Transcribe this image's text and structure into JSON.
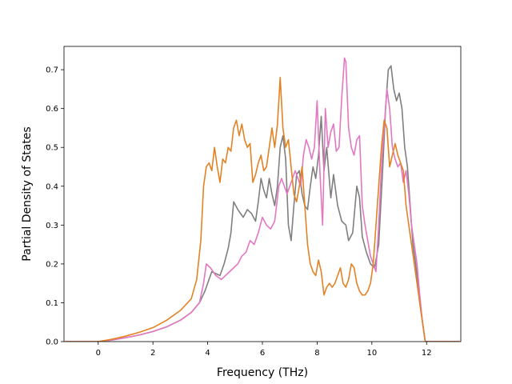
{
  "chart_data": {
    "type": "line",
    "title": "",
    "xlabel": "Frequency (THz)",
    "ylabel": "Partial Density of States",
    "xlim": [
      -1.25,
      13.25
    ],
    "ylim": [
      0.0,
      0.76
    ],
    "xticks": [
      0,
      2,
      4,
      6,
      8,
      10,
      12
    ],
    "yticks": [
      0.0,
      0.1,
      0.2,
      0.3,
      0.4,
      0.5,
      0.6,
      0.7
    ],
    "xtick_labels": [
      "0",
      "2",
      "4",
      "6",
      "8",
      "10",
      "12"
    ],
    "ytick_labels": [
      "0.0",
      "0.1",
      "0.2",
      "0.3",
      "0.4",
      "0.5",
      "0.6",
      "0.7"
    ],
    "grid": false,
    "legend": "none",
    "series": [
      {
        "color": "#7f7f7f",
        "points": [
          [
            -1.2,
            0
          ],
          [
            0,
            0
          ],
          [
            0.5,
            0.004
          ],
          [
            1,
            0.01
          ],
          [
            1.5,
            0.017
          ],
          [
            2,
            0.026
          ],
          [
            2.5,
            0.038
          ],
          [
            3,
            0.055
          ],
          [
            3.4,
            0.075
          ],
          [
            3.7,
            0.1
          ],
          [
            3.9,
            0.13
          ],
          [
            4.0,
            0.15
          ],
          [
            4.15,
            0.18
          ],
          [
            4.3,
            0.175
          ],
          [
            4.45,
            0.17
          ],
          [
            4.6,
            0.2
          ],
          [
            4.75,
            0.24
          ],
          [
            4.85,
            0.28
          ],
          [
            4.95,
            0.36
          ],
          [
            5.1,
            0.34
          ],
          [
            5.3,
            0.32
          ],
          [
            5.45,
            0.34
          ],
          [
            5.6,
            0.33
          ],
          [
            5.75,
            0.31
          ],
          [
            5.85,
            0.36
          ],
          [
            5.95,
            0.42
          ],
          [
            6.05,
            0.39
          ],
          [
            6.15,
            0.37
          ],
          [
            6.25,
            0.42
          ],
          [
            6.35,
            0.38
          ],
          [
            6.45,
            0.35
          ],
          [
            6.55,
            0.4
          ],
          [
            6.65,
            0.5
          ],
          [
            6.75,
            0.53
          ],
          [
            6.85,
            0.47
          ],
          [
            6.95,
            0.3
          ],
          [
            7.05,
            0.26
          ],
          [
            7.15,
            0.35
          ],
          [
            7.25,
            0.43
          ],
          [
            7.35,
            0.44
          ],
          [
            7.45,
            0.38
          ],
          [
            7.55,
            0.35
          ],
          [
            7.65,
            0.34
          ],
          [
            7.75,
            0.4
          ],
          [
            7.85,
            0.45
          ],
          [
            7.95,
            0.42
          ],
          [
            8.05,
            0.48
          ],
          [
            8.15,
            0.58
          ],
          [
            8.25,
            0.44
          ],
          [
            8.35,
            0.5
          ],
          [
            8.5,
            0.37
          ],
          [
            8.6,
            0.43
          ],
          [
            8.75,
            0.35
          ],
          [
            8.9,
            0.31
          ],
          [
            9.05,
            0.3
          ],
          [
            9.15,
            0.26
          ],
          [
            9.3,
            0.28
          ],
          [
            9.45,
            0.4
          ],
          [
            9.55,
            0.37
          ],
          [
            9.65,
            0.27
          ],
          [
            9.8,
            0.23
          ],
          [
            9.95,
            0.2
          ],
          [
            10.1,
            0.19
          ],
          [
            10.25,
            0.25
          ],
          [
            10.4,
            0.45
          ],
          [
            10.5,
            0.6
          ],
          [
            10.6,
            0.7
          ],
          [
            10.7,
            0.71
          ],
          [
            10.8,
            0.65
          ],
          [
            10.9,
            0.62
          ],
          [
            11.0,
            0.64
          ],
          [
            11.1,
            0.6
          ],
          [
            11.2,
            0.5
          ],
          [
            11.3,
            0.45
          ],
          [
            11.4,
            0.35
          ],
          [
            11.5,
            0.25
          ],
          [
            11.6,
            0.2
          ],
          [
            11.75,
            0.1
          ],
          [
            11.85,
            0.05
          ],
          [
            11.95,
            0
          ],
          [
            13.2,
            0
          ]
        ]
      },
      {
        "color": "#e377c2",
        "points": [
          [
            -1.2,
            0
          ],
          [
            0,
            0
          ],
          [
            0.5,
            0.004
          ],
          [
            1,
            0.01
          ],
          [
            1.5,
            0.017
          ],
          [
            2,
            0.026
          ],
          [
            2.5,
            0.038
          ],
          [
            3,
            0.055
          ],
          [
            3.4,
            0.075
          ],
          [
            3.7,
            0.1
          ],
          [
            3.85,
            0.15
          ],
          [
            3.95,
            0.2
          ],
          [
            4.1,
            0.19
          ],
          [
            4.3,
            0.17
          ],
          [
            4.5,
            0.16
          ],
          [
            4.65,
            0.17
          ],
          [
            4.8,
            0.18
          ],
          [
            4.95,
            0.19
          ],
          [
            5.1,
            0.2
          ],
          [
            5.25,
            0.22
          ],
          [
            5.4,
            0.23
          ],
          [
            5.55,
            0.26
          ],
          [
            5.7,
            0.25
          ],
          [
            5.85,
            0.28
          ],
          [
            6.0,
            0.32
          ],
          [
            6.15,
            0.3
          ],
          [
            6.3,
            0.29
          ],
          [
            6.45,
            0.31
          ],
          [
            6.6,
            0.4
          ],
          [
            6.7,
            0.42
          ],
          [
            6.8,
            0.4
          ],
          [
            6.9,
            0.38
          ],
          [
            7.0,
            0.4
          ],
          [
            7.1,
            0.42
          ],
          [
            7.2,
            0.44
          ],
          [
            7.3,
            0.42
          ],
          [
            7.4,
            0.4
          ],
          [
            7.5,
            0.48
          ],
          [
            7.6,
            0.52
          ],
          [
            7.7,
            0.5
          ],
          [
            7.8,
            0.47
          ],
          [
            7.9,
            0.5
          ],
          [
            8.0,
            0.62
          ],
          [
            8.1,
            0.44
          ],
          [
            8.2,
            0.3
          ],
          [
            8.3,
            0.6
          ],
          [
            8.4,
            0.5
          ],
          [
            8.5,
            0.54
          ],
          [
            8.6,
            0.56
          ],
          [
            8.7,
            0.49
          ],
          [
            8.8,
            0.5
          ],
          [
            8.9,
            0.63
          ],
          [
            9.0,
            0.73
          ],
          [
            9.05,
            0.72
          ],
          [
            9.15,
            0.55
          ],
          [
            9.25,
            0.5
          ],
          [
            9.35,
            0.48
          ],
          [
            9.45,
            0.52
          ],
          [
            9.55,
            0.53
          ],
          [
            9.65,
            0.35
          ],
          [
            9.75,
            0.3
          ],
          [
            9.85,
            0.26
          ],
          [
            9.95,
            0.22
          ],
          [
            10.05,
            0.2
          ],
          [
            10.15,
            0.18
          ],
          [
            10.25,
            0.3
          ],
          [
            10.35,
            0.45
          ],
          [
            10.45,
            0.55
          ],
          [
            10.55,
            0.65
          ],
          [
            10.65,
            0.6
          ],
          [
            10.75,
            0.5
          ],
          [
            10.85,
            0.47
          ],
          [
            10.95,
            0.45
          ],
          [
            11.05,
            0.46
          ],
          [
            11.15,
            0.41
          ],
          [
            11.25,
            0.44
          ],
          [
            11.35,
            0.38
          ],
          [
            11.45,
            0.3
          ],
          [
            11.55,
            0.25
          ],
          [
            11.65,
            0.2
          ],
          [
            11.75,
            0.12
          ],
          [
            11.85,
            0.05
          ],
          [
            11.95,
            0
          ],
          [
            13.2,
            0
          ]
        ]
      },
      {
        "color": "#e38224",
        "points": [
          [
            -1.2,
            0
          ],
          [
            0,
            0
          ],
          [
            0.5,
            0.006
          ],
          [
            1,
            0.014
          ],
          [
            1.5,
            0.024
          ],
          [
            2,
            0.036
          ],
          [
            2.5,
            0.055
          ],
          [
            3,
            0.08
          ],
          [
            3.4,
            0.11
          ],
          [
            3.6,
            0.16
          ],
          [
            3.75,
            0.26
          ],
          [
            3.85,
            0.4
          ],
          [
            3.95,
            0.45
          ],
          [
            4.05,
            0.46
          ],
          [
            4.15,
            0.44
          ],
          [
            4.25,
            0.5
          ],
          [
            4.35,
            0.45
          ],
          [
            4.45,
            0.41
          ],
          [
            4.55,
            0.47
          ],
          [
            4.65,
            0.46
          ],
          [
            4.75,
            0.5
          ],
          [
            4.85,
            0.49
          ],
          [
            4.95,
            0.55
          ],
          [
            5.05,
            0.57
          ],
          [
            5.15,
            0.53
          ],
          [
            5.25,
            0.56
          ],
          [
            5.35,
            0.52
          ],
          [
            5.45,
            0.5
          ],
          [
            5.55,
            0.51
          ],
          [
            5.65,
            0.41
          ],
          [
            5.75,
            0.43
          ],
          [
            5.85,
            0.46
          ],
          [
            5.95,
            0.48
          ],
          [
            6.05,
            0.44
          ],
          [
            6.15,
            0.45
          ],
          [
            6.25,
            0.5
          ],
          [
            6.35,
            0.55
          ],
          [
            6.45,
            0.5
          ],
          [
            6.55,
            0.56
          ],
          [
            6.65,
            0.68
          ],
          [
            6.75,
            0.55
          ],
          [
            6.85,
            0.5
          ],
          [
            6.95,
            0.52
          ],
          [
            7.05,
            0.45
          ],
          [
            7.15,
            0.38
          ],
          [
            7.25,
            0.36
          ],
          [
            7.35,
            0.4
          ],
          [
            7.45,
            0.45
          ],
          [
            7.55,
            0.35
          ],
          [
            7.65,
            0.25
          ],
          [
            7.75,
            0.2
          ],
          [
            7.85,
            0.18
          ],
          [
            7.95,
            0.17
          ],
          [
            8.05,
            0.21
          ],
          [
            8.15,
            0.18
          ],
          [
            8.25,
            0.12
          ],
          [
            8.35,
            0.14
          ],
          [
            8.45,
            0.15
          ],
          [
            8.55,
            0.14
          ],
          [
            8.65,
            0.15
          ],
          [
            8.75,
            0.17
          ],
          [
            8.85,
            0.19
          ],
          [
            8.95,
            0.15
          ],
          [
            9.05,
            0.14
          ],
          [
            9.15,
            0.16
          ],
          [
            9.25,
            0.2
          ],
          [
            9.35,
            0.19
          ],
          [
            9.45,
            0.15
          ],
          [
            9.55,
            0.13
          ],
          [
            9.65,
            0.12
          ],
          [
            9.75,
            0.12
          ],
          [
            9.85,
            0.13
          ],
          [
            9.95,
            0.15
          ],
          [
            10.05,
            0.2
          ],
          [
            10.15,
            0.3
          ],
          [
            10.25,
            0.4
          ],
          [
            10.35,
            0.5
          ],
          [
            10.45,
            0.57
          ],
          [
            10.55,
            0.55
          ],
          [
            10.65,
            0.45
          ],
          [
            10.75,
            0.48
          ],
          [
            10.85,
            0.51
          ],
          [
            10.95,
            0.48
          ],
          [
            11.05,
            0.46
          ],
          [
            11.15,
            0.44
          ],
          [
            11.25,
            0.35
          ],
          [
            11.35,
            0.3
          ],
          [
            11.45,
            0.25
          ],
          [
            11.55,
            0.2
          ],
          [
            11.65,
            0.15
          ],
          [
            11.75,
            0.1
          ],
          [
            11.85,
            0.05
          ],
          [
            11.95,
            0
          ],
          [
            13.2,
            0
          ]
        ]
      }
    ]
  }
}
